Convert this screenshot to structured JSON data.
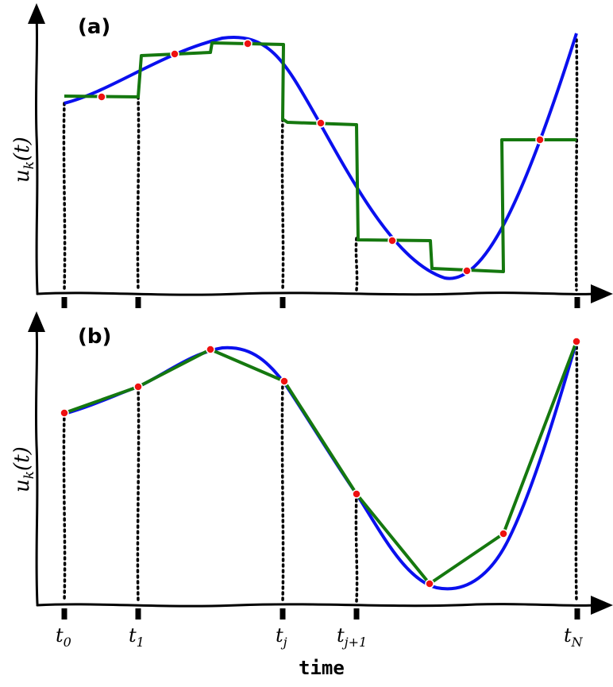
{
  "panels": [
    {
      "label": "(a)",
      "ylabel_main": "u",
      "ylabel_sub": "k",
      "ylabel_tail": "(t)",
      "approximation": "piecewise-constant"
    },
    {
      "label": "(b)",
      "ylabel_main": "u",
      "ylabel_sub": "k",
      "ylabel_tail": "(t)",
      "approximation": "piecewise-linear"
    }
  ],
  "ticks": [
    {
      "main": "t",
      "sub": "0"
    },
    {
      "main": "t",
      "sub": "1"
    },
    {
      "main": "t",
      "sub": "j"
    },
    {
      "main": "t",
      "sub": "j+1"
    },
    {
      "main": "t",
      "sub": "N"
    }
  ],
  "xlabel": "time",
  "colors": {
    "curve": "#0a10ee",
    "approximation": "#15780f",
    "samples": "#ee1111",
    "axes": "#000000"
  }
}
